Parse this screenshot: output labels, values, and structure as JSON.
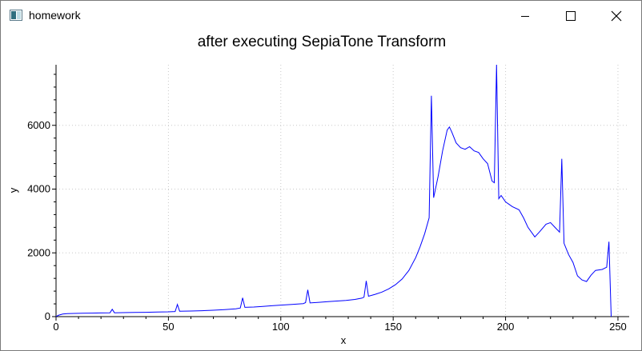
{
  "window": {
    "title": "homework",
    "icon": "app-window-icon",
    "controls": [
      "minimize-icon",
      "maximize-icon",
      "close-icon"
    ]
  },
  "chart_data": {
    "type": "line",
    "title": "after executing SepiaTone Transform",
    "xlabel": "x",
    "ylabel": "y",
    "xlim": [
      0,
      255
    ],
    "ylim": [
      0,
      7900
    ],
    "x_ticks": [
      0,
      50,
      100,
      150,
      200,
      250
    ],
    "y_ticks": [
      0,
      2000,
      4000,
      6000
    ],
    "grid": true,
    "legend": "none",
    "series": [
      {
        "color": "#0000ff",
        "points": [
          [
            0,
            0
          ],
          [
            1,
            40
          ],
          [
            3,
            80
          ],
          [
            5,
            95
          ],
          [
            8,
            100
          ],
          [
            12,
            105
          ],
          [
            16,
            110
          ],
          [
            20,
            115
          ],
          [
            24,
            120
          ],
          [
            25,
            230
          ],
          [
            26,
            120
          ],
          [
            30,
            125
          ],
          [
            35,
            130
          ],
          [
            40,
            135
          ],
          [
            45,
            145
          ],
          [
            50,
            150
          ],
          [
            53,
            160
          ],
          [
            54,
            380
          ],
          [
            55,
            170
          ],
          [
            60,
            175
          ],
          [
            65,
            185
          ],
          [
            70,
            200
          ],
          [
            75,
            220
          ],
          [
            80,
            245
          ],
          [
            82,
            270
          ],
          [
            83,
            590
          ],
          [
            84,
            290
          ],
          [
            88,
            300
          ],
          [
            92,
            320
          ],
          [
            96,
            340
          ],
          [
            100,
            360
          ],
          [
            105,
            380
          ],
          [
            110,
            410
          ],
          [
            111,
            440
          ],
          [
            112,
            840
          ],
          [
            113,
            430
          ],
          [
            117,
            450
          ],
          [
            121,
            470
          ],
          [
            125,
            490
          ],
          [
            129,
            510
          ],
          [
            133,
            540
          ],
          [
            136,
            580
          ],
          [
            137,
            610
          ],
          [
            138,
            1120
          ],
          [
            139,
            640
          ],
          [
            142,
            700
          ],
          [
            145,
            770
          ],
          [
            148,
            870
          ],
          [
            151,
            1000
          ],
          [
            154,
            1180
          ],
          [
            157,
            1450
          ],
          [
            160,
            1850
          ],
          [
            162,
            2200
          ],
          [
            164,
            2600
          ],
          [
            166,
            3100
          ],
          [
            167,
            6930
          ],
          [
            168,
            3730
          ],
          [
            170,
            4400
          ],
          [
            172,
            5200
          ],
          [
            174,
            5850
          ],
          [
            175,
            5950
          ],
          [
            176,
            5800
          ],
          [
            178,
            5450
          ],
          [
            180,
            5300
          ],
          [
            182,
            5250
          ],
          [
            184,
            5330
          ],
          [
            186,
            5200
          ],
          [
            188,
            5150
          ],
          [
            190,
            4950
          ],
          [
            192,
            4800
          ],
          [
            194,
            4250
          ],
          [
            195,
            4200
          ],
          [
            196,
            7900
          ],
          [
            197,
            3700
          ],
          [
            198,
            3800
          ],
          [
            200,
            3600
          ],
          [
            203,
            3450
          ],
          [
            206,
            3350
          ],
          [
            208,
            3100
          ],
          [
            210,
            2800
          ],
          [
            212,
            2600
          ],
          [
            213,
            2500
          ],
          [
            215,
            2650
          ],
          [
            218,
            2900
          ],
          [
            220,
            2950
          ],
          [
            222,
            2800
          ],
          [
            224,
            2650
          ],
          [
            225,
            4950
          ],
          [
            226,
            2300
          ],
          [
            228,
            1950
          ],
          [
            230,
            1700
          ],
          [
            232,
            1280
          ],
          [
            234,
            1150
          ],
          [
            236,
            1100
          ],
          [
            238,
            1300
          ],
          [
            240,
            1450
          ],
          [
            243,
            1480
          ],
          [
            245,
            1550
          ],
          [
            246,
            2350
          ],
          [
            247,
            0
          ]
        ]
      }
    ]
  }
}
